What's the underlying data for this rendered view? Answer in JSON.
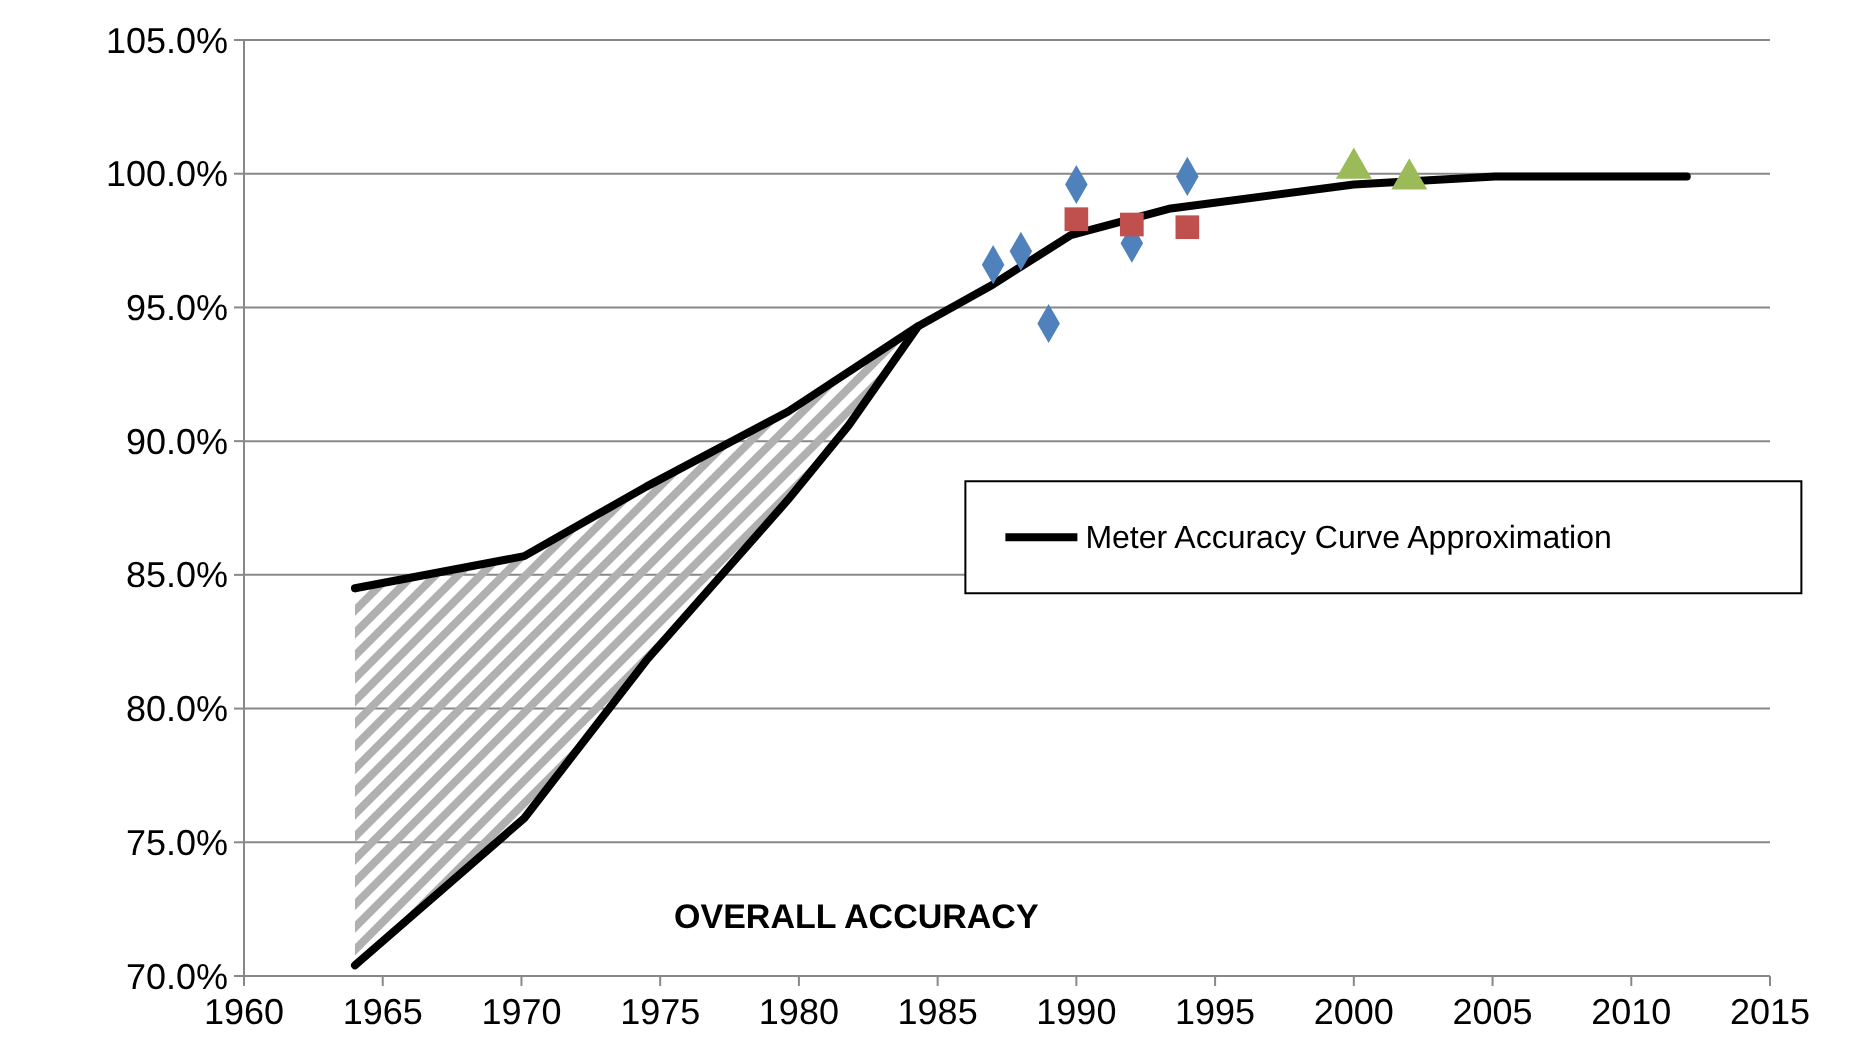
{
  "chart_data": {
    "type": "scatter",
    "annotations": [
      "OVERALL ACCURACY"
    ],
    "xlim": [
      1960,
      2015
    ],
    "xticks": [
      1960,
      1965,
      1970,
      1975,
      1980,
      1985,
      1990,
      1995,
      2000,
      2005,
      2010,
      2015
    ],
    "ylim": [
      70,
      105
    ],
    "yticks": [
      {
        "value": 70,
        "label": "70.0%"
      },
      {
        "value": 75,
        "label": "75.0%"
      },
      {
        "value": 80,
        "label": "80.0%"
      },
      {
        "value": 85,
        "label": "85.0%"
      },
      {
        "value": 90,
        "label": "90.0%"
      },
      {
        "value": 95,
        "label": "95.0%"
      },
      {
        "value": 100,
        "label": "100.0%"
      },
      {
        "value": 105,
        "label": "105.0%"
      }
    ],
    "grid": "y",
    "legend": "right",
    "series": [
      {
        "marker": "diamond",
        "color": "#4f81bd",
        "x": [
          1987,
          1988,
          1989,
          1990,
          1992,
          1994
        ],
        "values": [
          96.6,
          97.1,
          94.4,
          99.6,
          97.4,
          99.9
        ]
      },
      {
        "marker": "square",
        "color": "#c0504d",
        "x": [
          1990,
          1992,
          1994
        ],
        "values": [
          98.3,
          98.1,
          98.0
        ]
      },
      {
        "marker": "triangle",
        "color": "#9bbb59",
        "x": [
          2000,
          2002
        ],
        "values": [
          100.2,
          99.8
        ]
      },
      {
        "type": "line",
        "marker": "none",
        "color": "#000000",
        "x": [
          1964,
          1970.1,
          1974.5,
          1979.6,
          1984.3
        ],
        "values": [
          84.5,
          85.7,
          88.3,
          91.1,
          94.3
        ],
        "lower": [
          70.4,
          75.9,
          81.8,
          87.8,
          94.3
        ],
        "upper": [
          84.5,
          85.7,
          88.3,
          91.1,
          94.3
        ]
      },
      {
        "type": "line",
        "marker": "none",
        "name": "Meter Accuracy Curve Approximation",
        "color": "#000000",
        "x": [
          1964,
          1970.1,
          1974.5,
          1979.6,
          1981.8,
          1984.3,
          1986.9,
          1989.8,
          1993.4,
          2000,
          2005.1,
          2012
        ],
        "values": [
          70.4,
          75.9,
          81.8,
          87.8,
          90.6,
          94.3,
          95.8,
          97.7,
          98.7,
          99.6,
          99.9,
          99.9
        ]
      }
    ]
  }
}
